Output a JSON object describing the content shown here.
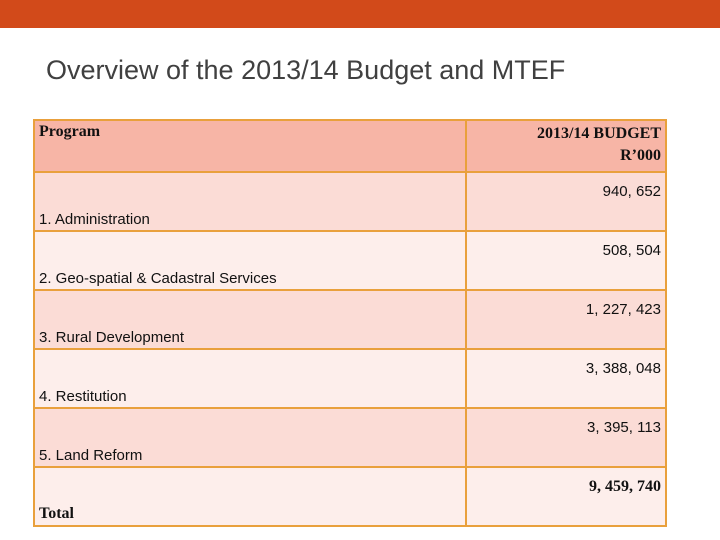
{
  "slide": {
    "title": "Overview of the 2013/14 Budget and MTEF",
    "accent_color": "#d24a1a"
  },
  "table": {
    "headers": {
      "program": "Program",
      "budget_line1": "2013/14 BUDGET",
      "budget_line2": "R’000"
    },
    "rows": [
      {
        "program": "1. Administration",
        "amount": "940, 652"
      },
      {
        "program": "2. Geo-spatial & Cadastral Services",
        "amount": "508, 504"
      },
      {
        "program": "3. Rural Development",
        "amount": "1, 227, 423"
      },
      {
        "program": "4. Restitution",
        "amount": "3, 388, 048"
      },
      {
        "program": "5. Land Reform",
        "amount": "3, 395, 113"
      }
    ],
    "total": {
      "label": "Total",
      "amount": "9, 459, 740"
    }
  }
}
